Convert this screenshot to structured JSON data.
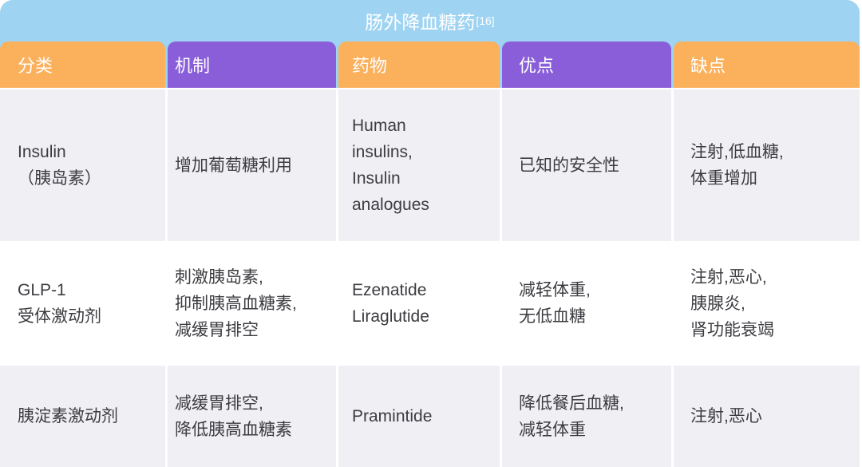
{
  "title": {
    "text": "肠外降血糖药",
    "reference": "[16]"
  },
  "colors": {
    "title_bar_bg": "#9ED3F2",
    "header_orange": "#FBB05C",
    "header_purple": "#8A5ED9",
    "row_alt_bg": "#F0EFF4",
    "row_bg": "#FFFFFF",
    "header_text": "#FFFFFF",
    "body_text": "#3C3C41"
  },
  "table": {
    "headers": [
      {
        "label": "分类",
        "color": "orange"
      },
      {
        "label": "机制",
        "color": "purple"
      },
      {
        "label": "药物",
        "color": "orange"
      },
      {
        "label": "优点",
        "color": "purple"
      },
      {
        "label": "缺点",
        "color": "orange"
      }
    ],
    "rows": [
      {
        "cells": [
          "Insulin\n（胰岛素）",
          "增加葡萄糖利用",
          "Human\ninsulins,\nInsulin\nanalogues",
          "已知的安全性",
          "注射,低血糖,\n体重增加"
        ]
      },
      {
        "cells": [
          "GLP-1\n受体激动剂",
          "刺激胰岛素,\n抑制胰高血糖素,\n减缓胃排空",
          "Ezenatide\nLiraglutide",
          "减轻体重,\n无低血糖",
          "注射,恶心,\n胰腺炎,\n肾功能衰竭"
        ]
      },
      {
        "cells": [
          "胰淀素激动剂",
          "减缓胃排空,\n降低胰高血糖素",
          "Pramintide",
          "降低餐后血糖,\n减轻体重",
          "注射,恶心"
        ]
      }
    ]
  }
}
